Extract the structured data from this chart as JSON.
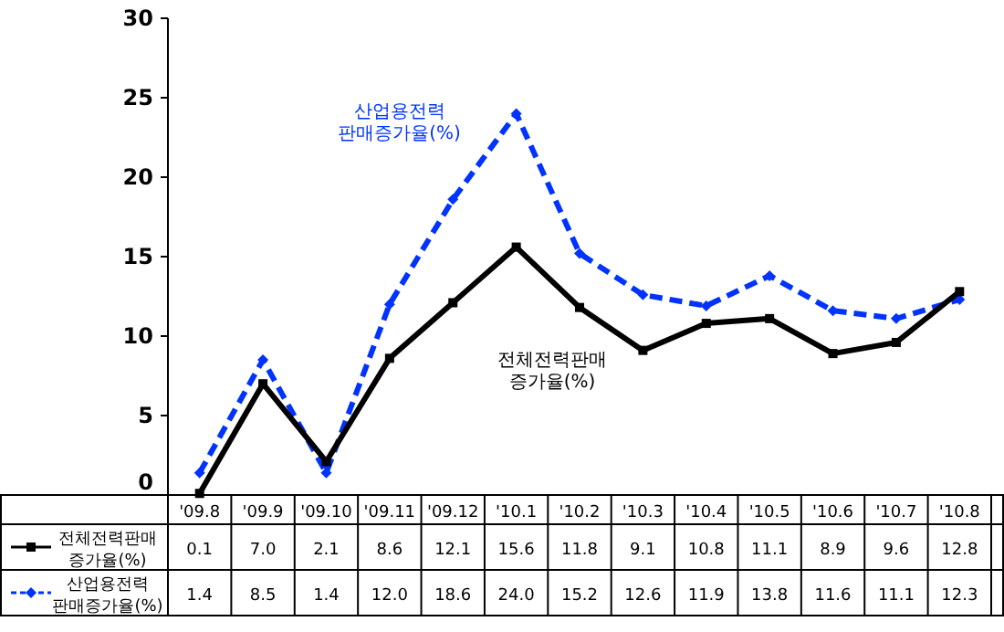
{
  "chart_data": {
    "type": "line",
    "categories": [
      "'09.8",
      "'09.9",
      "'09.10",
      "'09.11",
      "'09.12",
      "'10.1",
      "'10.2",
      "'10.3",
      "'10.4",
      "'10.5",
      "'10.6",
      "'10.7",
      "'10.8"
    ],
    "ylim": [
      0,
      30
    ],
    "yticks": [
      0,
      5,
      10,
      15,
      20,
      25,
      30
    ],
    "grid": false,
    "legend": "bottom left",
    "series": [
      {
        "name": "전체전력판매\n증가율(%)",
        "color": "#000000",
        "marker": "square",
        "line_style": "solid",
        "values": [
          0.1,
          7.0,
          2.1,
          8.6,
          12.1,
          15.6,
          11.8,
          9.1,
          10.8,
          11.1,
          8.9,
          9.6,
          12.8
        ],
        "value_labels": [
          "0.1",
          "7.0",
          "2.1",
          "8.6",
          "12.1",
          "15.6",
          "11.8",
          "9.1",
          "10.8",
          "11.1",
          "8.9",
          "9.6",
          "12.8"
        ]
      },
      {
        "name": "산업용전력\n판매증가율(%)",
        "color": "#0033ff",
        "marker": "diamond",
        "line_style": "dashed",
        "values": [
          1.4,
          8.5,
          1.4,
          12.0,
          18.6,
          24.0,
          15.2,
          12.6,
          11.9,
          13.8,
          11.6,
          11.1,
          12.3
        ],
        "value_labels": [
          "1.4",
          "8.5",
          "1.4",
          "12.0",
          "18.6",
          "24.0",
          "15.2",
          "12.6",
          "11.9",
          "13.8",
          "11.6",
          "11.1",
          "12.3"
        ]
      }
    ],
    "annotations": [
      "산업용전력\n판매증가율(%)",
      "전체전력판매\n증가율(%)"
    ]
  }
}
